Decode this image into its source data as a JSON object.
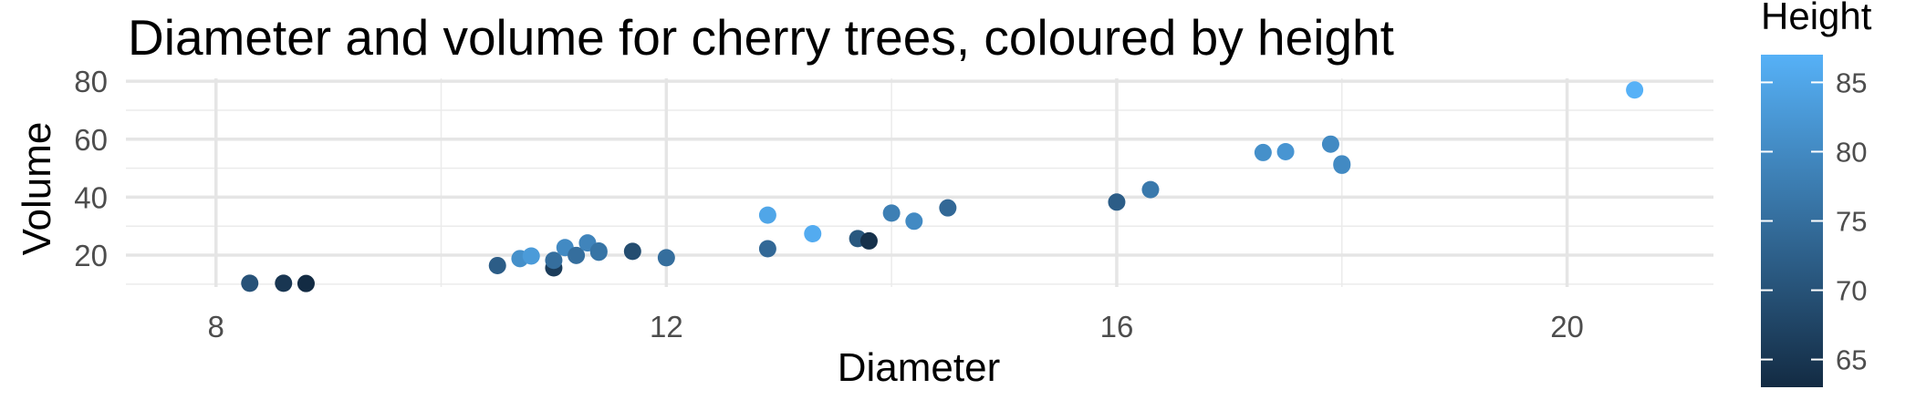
{
  "chart_data": {
    "type": "scatter",
    "title": "Diameter and volume for cherry trees, coloured by height",
    "xlabel": "Diameter",
    "ylabel": "Volume",
    "xlim": [
      7.2,
      21.3
    ],
    "ylim": [
      9,
      81
    ],
    "x_ticks": [
      {
        "value": 8,
        "label": "8"
      },
      {
        "value": 12,
        "label": "12"
      },
      {
        "value": 16,
        "label": "16"
      },
      {
        "value": 20,
        "label": "20"
      }
    ],
    "y_ticks": [
      {
        "value": 20,
        "label": "20"
      },
      {
        "value": 40,
        "label": "40"
      },
      {
        "value": 60,
        "label": "60"
      },
      {
        "value": 80,
        "label": "80"
      }
    ],
    "grid": true,
    "legend": {
      "title": "Height",
      "placement": "right",
      "range": [
        63,
        87
      ],
      "ticks": [
        {
          "value": 65,
          "label": "65"
        },
        {
          "value": 70,
          "label": "70"
        },
        {
          "value": 75,
          "label": "75"
        },
        {
          "value": 80,
          "label": "80"
        },
        {
          "value": 85,
          "label": "85"
        }
      ],
      "low_color": "#132B43",
      "high_color": "#56B1F7"
    },
    "points": [
      {
        "diameter": 8.3,
        "volume": 10.3,
        "height": 70
      },
      {
        "diameter": 8.6,
        "volume": 10.3,
        "height": 65
      },
      {
        "diameter": 8.8,
        "volume": 10.2,
        "height": 63
      },
      {
        "diameter": 10.5,
        "volume": 16.4,
        "height": 72
      },
      {
        "diameter": 10.7,
        "volume": 18.8,
        "height": 81
      },
      {
        "diameter": 10.8,
        "volume": 19.7,
        "height": 83
      },
      {
        "diameter": 11.0,
        "volume": 15.6,
        "height": 66
      },
      {
        "diameter": 11.0,
        "volume": 18.2,
        "height": 75
      },
      {
        "diameter": 11.1,
        "volume": 22.6,
        "height": 80
      },
      {
        "diameter": 11.2,
        "volume": 19.9,
        "height": 75
      },
      {
        "diameter": 11.3,
        "volume": 24.2,
        "height": 79
      },
      {
        "diameter": 11.4,
        "volume": 21.0,
        "height": 76
      },
      {
        "diameter": 11.4,
        "volume": 21.4,
        "height": 76
      },
      {
        "diameter": 11.7,
        "volume": 21.3,
        "height": 69
      },
      {
        "diameter": 12.0,
        "volume": 19.1,
        "height": 75
      },
      {
        "diameter": 12.9,
        "volume": 22.2,
        "height": 74
      },
      {
        "diameter": 12.9,
        "volume": 33.8,
        "height": 85
      },
      {
        "diameter": 13.3,
        "volume": 27.4,
        "height": 86
      },
      {
        "diameter": 13.7,
        "volume": 25.7,
        "height": 71
      },
      {
        "diameter": 13.8,
        "volume": 24.9,
        "height": 64
      },
      {
        "diameter": 14.0,
        "volume": 34.5,
        "height": 78
      },
      {
        "diameter": 14.2,
        "volume": 31.7,
        "height": 80
      },
      {
        "diameter": 14.5,
        "volume": 36.3,
        "height": 74
      },
      {
        "diameter": 16.0,
        "volume": 38.3,
        "height": 72
      },
      {
        "diameter": 16.3,
        "volume": 42.6,
        "height": 77
      },
      {
        "diameter": 17.3,
        "volume": 55.4,
        "height": 81
      },
      {
        "diameter": 17.5,
        "volume": 55.7,
        "height": 82
      },
      {
        "diameter": 17.9,
        "volume": 58.3,
        "height": 80
      },
      {
        "diameter": 18.0,
        "volume": 51.5,
        "height": 80
      },
      {
        "diameter": 18.0,
        "volume": 51.0,
        "height": 80
      },
      {
        "diameter": 20.6,
        "volume": 77.0,
        "height": 87
      }
    ]
  }
}
